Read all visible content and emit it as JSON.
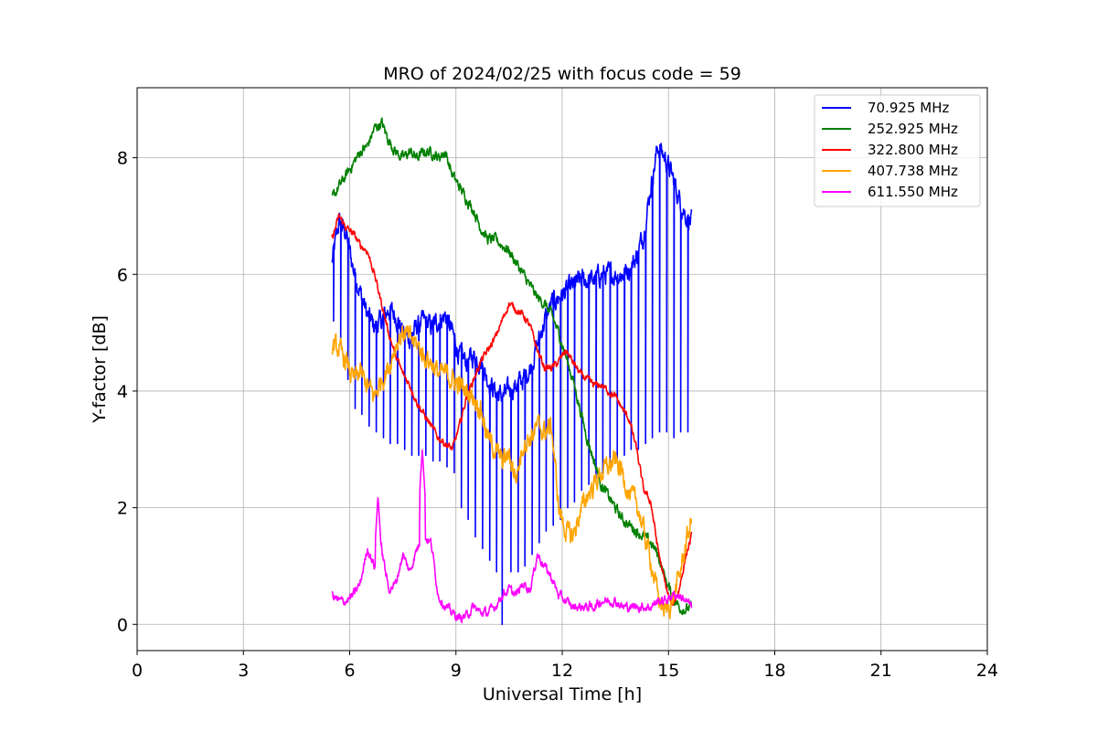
{
  "chart_data": {
    "type": "line",
    "title": "MRO of 2024/02/25 with focus code = 59",
    "xlabel": "Universal Time [h]",
    "ylabel": "Y-factor [dB]",
    "xlim": [
      0,
      24
    ],
    "ylim": [
      -0.45,
      9.2
    ],
    "xticks": [
      0,
      3,
      6,
      9,
      12,
      15,
      18,
      21,
      24
    ],
    "xtick_labels": [
      "0",
      "3",
      "6",
      "9",
      "12",
      "15",
      "18",
      "21",
      "24"
    ],
    "yticks": [
      0,
      2,
      4,
      6,
      8
    ],
    "ytick_labels": [
      "0",
      "2",
      "4",
      "6",
      "8"
    ],
    "grid": true,
    "legend_position": "top-right",
    "series": [
      {
        "name": " 70.925 MHz",
        "color": "#0000ff",
        "x": [
          5.5,
          5.7,
          5.9,
          6.1,
          6.3,
          6.5,
          6.7,
          6.9,
          7.1,
          7.3,
          7.5,
          7.7,
          7.9,
          8.1,
          8.3,
          8.5,
          8.7,
          8.9,
          9.1,
          9.3,
          9.5,
          9.7,
          9.9,
          10.1,
          10.3,
          10.5,
          10.7,
          10.9,
          11.1,
          11.3,
          11.5,
          11.7,
          11.9,
          12.1,
          12.3,
          12.5,
          12.7,
          12.9,
          13.1,
          13.3,
          13.5,
          13.7,
          13.9,
          14.1,
          14.3,
          14.5,
          14.7,
          14.9,
          15.1,
          15.3,
          15.5,
          15.65
        ],
        "y": [
          6.2,
          6.9,
          6.7,
          6.1,
          5.7,
          5.3,
          5.1,
          5.2,
          5.4,
          5.3,
          5.0,
          4.9,
          5.1,
          5.2,
          5.1,
          5.2,
          5.3,
          5.0,
          4.6,
          4.5,
          4.6,
          4.5,
          4.2,
          4.0,
          3.9,
          4.0,
          4.1,
          4.2,
          4.4,
          4.8,
          5.2,
          5.5,
          5.6,
          5.7,
          5.8,
          5.9,
          5.9,
          5.9,
          6.0,
          6.0,
          6.0,
          6.0,
          6.1,
          6.3,
          6.7,
          7.5,
          8.2,
          8.0,
          7.7,
          7.3,
          7.0,
          6.9
        ],
        "dips": [
          5.55,
          5.75,
          5.95,
          6.15,
          6.35,
          6.55,
          6.75,
          6.95,
          7.15,
          7.35,
          7.55,
          7.75,
          7.95,
          8.15,
          8.35,
          8.55,
          8.75,
          8.95,
          9.15,
          9.35,
          9.55,
          9.75,
          9.95,
          10.15,
          10.3,
          10.55,
          10.75,
          10.95,
          11.15,
          11.35,
          11.55,
          11.75,
          11.95,
          12.15,
          12.35,
          12.55,
          12.75,
          12.95,
          13.15,
          13.35,
          13.55,
          13.75,
          13.95,
          14.15,
          14.35,
          14.55,
          14.75,
          14.95,
          15.15,
          15.35,
          15.55
        ],
        "dip_floor": [
          5.2,
          4.8,
          4.2,
          3.7,
          3.6,
          3.4,
          3.3,
          3.2,
          3.1,
          3.1,
          3.0,
          2.9,
          2.9,
          2.9,
          2.8,
          2.8,
          2.7,
          2.6,
          2.0,
          1.8,
          1.5,
          1.3,
          1.1,
          0.9,
          0.0,
          0.9,
          0.9,
          1.0,
          1.2,
          1.4,
          1.6,
          1.7,
          1.8,
          2.0,
          2.1,
          2.3,
          2.4,
          2.5,
          2.6,
          2.7,
          2.8,
          2.9,
          3.0,
          3.0,
          3.1,
          3.2,
          3.3,
          3.3,
          3.2,
          3.3,
          3.3
        ]
      },
      {
        "name": "252.925 MHz",
        "color": "#008000",
        "x": [
          5.5,
          5.7,
          5.9,
          6.1,
          6.3,
          6.5,
          6.7,
          6.9,
          7.1,
          7.3,
          7.5,
          7.7,
          7.9,
          8.1,
          8.3,
          8.5,
          8.7,
          8.9,
          9.1,
          9.3,
          9.5,
          9.7,
          9.9,
          10.1,
          10.3,
          10.5,
          10.7,
          10.9,
          11.1,
          11.3,
          11.5,
          11.7,
          11.9,
          12.1,
          12.3,
          12.5,
          12.7,
          12.9,
          13.1,
          13.3,
          13.5,
          13.7,
          13.9,
          14.1,
          14.3,
          14.5,
          14.7,
          14.9,
          15.1,
          15.3,
          15.5,
          15.65
        ],
        "y": [
          7.3,
          7.5,
          7.7,
          7.9,
          8.1,
          8.2,
          8.5,
          8.6,
          8.3,
          8.1,
          8.0,
          8.1,
          8.0,
          8.1,
          8.1,
          8.0,
          8.1,
          7.7,
          7.5,
          7.3,
          7.1,
          6.8,
          6.6,
          6.6,
          6.5,
          6.4,
          6.2,
          6.0,
          5.8,
          5.6,
          5.5,
          5.3,
          5.0,
          4.6,
          4.2,
          3.7,
          3.2,
          2.8,
          2.4,
          2.2,
          2.0,
          1.8,
          1.7,
          1.6,
          1.5,
          1.4,
          1.2,
          0.8,
          0.5,
          0.3,
          0.25,
          0.3
        ]
      },
      {
        "name": "322.800 MHz",
        "color": "#ff0000",
        "x": [
          5.5,
          5.7,
          5.9,
          6.1,
          6.3,
          6.5,
          6.7,
          6.9,
          7.1,
          7.3,
          7.5,
          7.7,
          7.9,
          8.1,
          8.3,
          8.5,
          8.7,
          8.9,
          9.1,
          9.3,
          9.5,
          9.7,
          9.9,
          10.1,
          10.3,
          10.5,
          10.7,
          10.9,
          11.1,
          11.3,
          11.5,
          11.7,
          11.9,
          12.1,
          12.3,
          12.5,
          12.7,
          12.9,
          13.1,
          13.3,
          13.5,
          13.7,
          13.9,
          14.1,
          14.3,
          14.5,
          14.7,
          14.9,
          15.1,
          15.3,
          15.5,
          15.65
        ],
        "y": [
          6.6,
          7.0,
          6.8,
          6.7,
          6.5,
          6.4,
          6.0,
          5.5,
          5.0,
          4.6,
          4.3,
          4.1,
          3.8,
          3.6,
          3.4,
          3.2,
          3.1,
          3.0,
          3.4,
          3.9,
          4.2,
          4.5,
          4.7,
          4.9,
          5.2,
          5.5,
          5.4,
          5.3,
          5.1,
          4.7,
          4.4,
          4.4,
          4.5,
          4.7,
          4.5,
          4.3,
          4.2,
          4.1,
          4.1,
          4.0,
          3.9,
          3.7,
          3.5,
          3.0,
          2.3,
          2.1,
          1.3,
          0.7,
          0.3,
          0.6,
          1.2,
          1.5
        ]
      },
      {
        "name": "407.738 MHz",
        "color": "#ffa500",
        "x": [
          5.5,
          5.7,
          5.9,
          6.1,
          6.3,
          6.5,
          6.7,
          6.9,
          7.1,
          7.3,
          7.5,
          7.7,
          7.9,
          8.1,
          8.3,
          8.5,
          8.7,
          8.9,
          9.1,
          9.3,
          9.5,
          9.7,
          9.9,
          10.1,
          10.3,
          10.5,
          10.7,
          10.9,
          11.1,
          11.3,
          11.5,
          11.7,
          11.9,
          12.1,
          12.3,
          12.5,
          12.7,
          12.9,
          13.1,
          13.3,
          13.5,
          13.7,
          13.9,
          14.1,
          14.3,
          14.5,
          14.7,
          14.9,
          15.1,
          15.3,
          15.5,
          15.65
        ],
        "y": [
          4.8,
          4.7,
          4.5,
          4.2,
          4.3,
          4.1,
          3.9,
          4.2,
          4.4,
          4.8,
          5.0,
          4.9,
          4.8,
          4.6,
          4.5,
          4.3,
          4.3,
          4.2,
          4.1,
          4.0,
          3.9,
          3.7,
          3.2,
          3.0,
          2.8,
          2.9,
          2.5,
          3.1,
          3.2,
          3.4,
          3.3,
          3.4,
          2.0,
          1.6,
          1.5,
          1.9,
          2.2,
          2.4,
          2.6,
          2.7,
          2.8,
          2.6,
          2.2,
          2.1,
          1.6,
          1.1,
          0.5,
          0.2,
          0.4,
          0.8,
          1.4,
          1.8
        ]
      },
      {
        "name": "611.550 MHz",
        "color": "#ff00ff",
        "x": [
          5.5,
          5.7,
          5.9,
          6.1,
          6.3,
          6.5,
          6.7,
          6.9,
          7.1,
          7.3,
          7.5,
          7.7,
          7.9,
          8.1,
          8.3,
          8.5,
          8.7,
          8.9,
          9.1,
          9.3,
          9.5,
          9.7,
          9.9,
          10.1,
          10.3,
          10.5,
          10.7,
          10.9,
          11.1,
          11.3,
          11.5,
          11.7,
          11.9,
          12.1,
          12.3,
          12.5,
          12.7,
          12.9,
          13.1,
          13.3,
          13.5,
          13.7,
          13.9,
          14.1,
          14.3,
          14.5,
          14.7,
          14.9,
          15.1,
          15.3,
          15.5,
          15.65
        ],
        "y": [
          0.5,
          0.4,
          0.4,
          0.5,
          0.7,
          1.3,
          1.0,
          1.3,
          0.6,
          0.7,
          1.2,
          0.9,
          1.3,
          1.5,
          1.4,
          0.5,
          0.3,
          0.2,
          0.1,
          0.15,
          0.3,
          0.2,
          0.2,
          0.3,
          0.5,
          0.6,
          0.5,
          0.7,
          0.6,
          1.2,
          1.0,
          0.8,
          0.5,
          0.4,
          0.3,
          0.3,
          0.3,
          0.3,
          0.4,
          0.4,
          0.4,
          0.3,
          0.3,
          0.3,
          0.3,
          0.3,
          0.4,
          0.4,
          0.5,
          0.5,
          0.4,
          0.3
        ],
        "spikes": [
          {
            "x": 6.8,
            "y": 2.2
          },
          {
            "x": 8.05,
            "y": 3.0
          }
        ]
      }
    ]
  }
}
